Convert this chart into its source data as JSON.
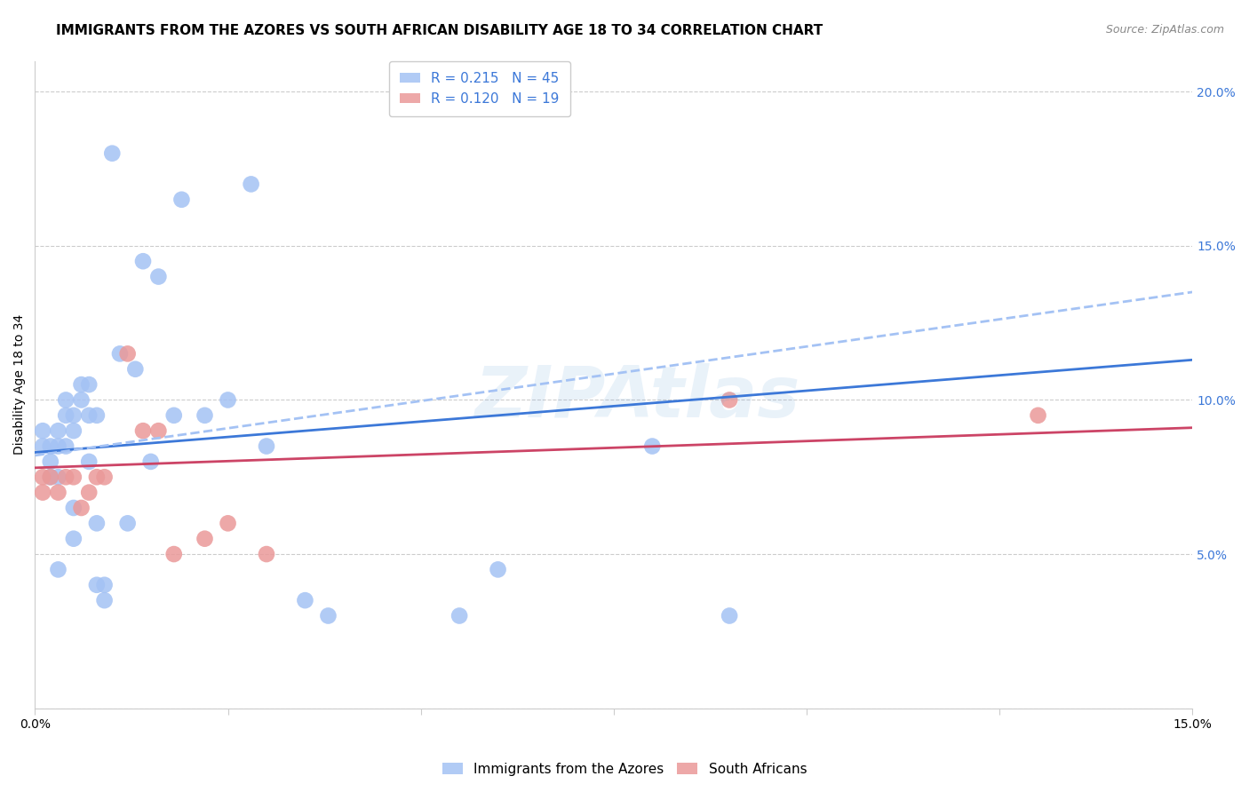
{
  "title": "IMMIGRANTS FROM THE AZORES VS SOUTH AFRICAN DISABILITY AGE 18 TO 34 CORRELATION CHART",
  "source": "Source: ZipAtlas.com",
  "ylabel": "Disability Age 18 to 34",
  "xlim": [
    0.0,
    0.15
  ],
  "ylim": [
    0.0,
    0.21
  ],
  "y_ticks": [
    0.0,
    0.05,
    0.1,
    0.15,
    0.2
  ],
  "y_tick_labels_right": [
    "",
    "5.0%",
    "10.0%",
    "15.0%",
    "20.0%"
  ],
  "blue_R": 0.215,
  "blue_N": 45,
  "pink_R": 0.12,
  "pink_N": 19,
  "blue_color": "#a4c2f4",
  "pink_color": "#ea9999",
  "blue_line_color": "#3c78d8",
  "pink_line_color": "#cc4466",
  "dashed_line_color": "#a4c2f4",
  "legend_label_blue": "Immigrants from the Azores",
  "legend_label_pink": "South Africans",
  "blue_scatter_x": [
    0.001,
    0.001,
    0.002,
    0.002,
    0.002,
    0.003,
    0.003,
    0.003,
    0.003,
    0.004,
    0.004,
    0.004,
    0.005,
    0.005,
    0.005,
    0.005,
    0.006,
    0.006,
    0.007,
    0.007,
    0.007,
    0.008,
    0.008,
    0.008,
    0.009,
    0.009,
    0.01,
    0.011,
    0.012,
    0.013,
    0.014,
    0.015,
    0.016,
    0.018,
    0.019,
    0.022,
    0.025,
    0.028,
    0.03,
    0.035,
    0.038,
    0.055,
    0.06,
    0.08,
    0.09
  ],
  "blue_scatter_y": [
    0.09,
    0.085,
    0.085,
    0.08,
    0.075,
    0.09,
    0.085,
    0.075,
    0.045,
    0.1,
    0.095,
    0.085,
    0.095,
    0.09,
    0.065,
    0.055,
    0.105,
    0.1,
    0.105,
    0.095,
    0.08,
    0.095,
    0.06,
    0.04,
    0.04,
    0.035,
    0.18,
    0.115,
    0.06,
    0.11,
    0.145,
    0.08,
    0.14,
    0.095,
    0.165,
    0.095,
    0.1,
    0.17,
    0.085,
    0.035,
    0.03,
    0.03,
    0.045,
    0.085,
    0.03
  ],
  "pink_scatter_x": [
    0.001,
    0.001,
    0.002,
    0.003,
    0.004,
    0.005,
    0.006,
    0.007,
    0.008,
    0.009,
    0.012,
    0.014,
    0.016,
    0.018,
    0.022,
    0.025,
    0.03,
    0.09,
    0.13
  ],
  "pink_scatter_y": [
    0.075,
    0.07,
    0.075,
    0.07,
    0.075,
    0.075,
    0.065,
    0.07,
    0.075,
    0.075,
    0.115,
    0.09,
    0.09,
    0.05,
    0.055,
    0.06,
    0.05,
    0.1,
    0.095
  ],
  "blue_trend_x0": 0.0,
  "blue_trend_x1": 0.15,
  "blue_trend_y0": 0.083,
  "blue_trend_y1": 0.113,
  "pink_trend_x0": 0.0,
  "pink_trend_x1": 0.15,
  "pink_trend_y0": 0.078,
  "pink_trend_y1": 0.091,
  "dashed_trend_x0": 0.0,
  "dashed_trend_x1": 0.15,
  "dashed_trend_y0": 0.082,
  "dashed_trend_y1": 0.135,
  "grid_color": "#cccccc",
  "bg_color": "#ffffff",
  "title_fontsize": 11,
  "axis_label_fontsize": 10,
  "tick_fontsize": 10,
  "legend_fontsize": 11,
  "right_tick_color": "#3c78d8"
}
